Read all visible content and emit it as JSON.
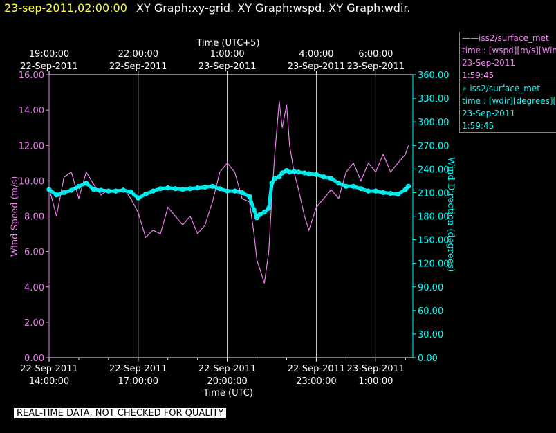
{
  "header": {
    "timestamp": "23-sep-2011,02:00:00",
    "graphs": "XY Graph:xy-grid.  XY Graph:wspd.  XY Graph:wdir."
  },
  "legend": [
    {
      "name": "——iss2/surface_met",
      "detail": "time : [wspd][m/s][Wind",
      "date": "23-Sep-2011",
      "time": "1:59:45",
      "color": "#ee82ee"
    },
    {
      "name": "∘ iss2/surface_met",
      "detail": "time : [wdir][degrees][W",
      "date": "23-Sep-2011",
      "time": "1:59:45",
      "color": "#00ffff"
    }
  ],
  "disclaimer": "REAL-TIME DATA, NOT CHECKED FOR QUALITY",
  "chart_data": {
    "type": "line",
    "grid": true,
    "colors": {
      "wspd": "#ee82ee",
      "wdir": "#00ffff",
      "grid": "#ffffff"
    },
    "x_bottom": {
      "label": "Time (UTC)",
      "ticks": [
        {
          "hour": 14,
          "date": "22-Sep-2011",
          "time": "14:00:00"
        },
        {
          "hour": 17,
          "date": "22-Sep-2011",
          "time": "17:00:00"
        },
        {
          "hour": 20,
          "date": "22-Sep-2011",
          "time": "20:00:00"
        },
        {
          "hour": 23,
          "date": "22-Sep-2011",
          "time": "23:00:00"
        },
        {
          "hour": 25,
          "date": "23-Sep-2011",
          "time": "1:00:00"
        }
      ]
    },
    "x_top": {
      "label": "Time (UTC+5)",
      "ticks": [
        {
          "hour": 14,
          "time": "19:00:00",
          "date": "22-Sep-2011"
        },
        {
          "hour": 17,
          "time": "22:00:00",
          "date": "22-Sep-2011"
        },
        {
          "hour": 20,
          "time": "1:00:00",
          "date": "23-Sep-2011"
        },
        {
          "hour": 23,
          "time": "4:00:00",
          "date": "23-Sep-2011"
        },
        {
          "hour": 25,
          "time": "6:00:00",
          "date": "23-Sep-2011"
        }
      ]
    },
    "xlim_hours": [
      14,
      26.25
    ],
    "y_left": {
      "label": "Wind Speed (m/s)",
      "ylim": [
        0,
        16
      ],
      "ticks": [
        "0.00",
        "2.00",
        "4.00",
        "6.00",
        "8.00",
        "10.00",
        "12.00",
        "14.00",
        "16.00"
      ]
    },
    "y_right": {
      "label": "Wind Direction (degrees)",
      "ylim": [
        0,
        360
      ],
      "ticks": [
        "0.00",
        "30.00",
        "60.00",
        "90.00",
        "120.00",
        "150.00",
        "180.00",
        "210.00",
        "240.00",
        "270.00",
        "300.00",
        "330.00",
        "360.00"
      ]
    },
    "series": [
      {
        "name": "iss2/surface_met wspd",
        "axis": "left",
        "hour": [
          14.0,
          14.25,
          14.5,
          14.75,
          15.0,
          15.25,
          15.5,
          15.75,
          16.0,
          16.25,
          16.5,
          16.75,
          17.0,
          17.25,
          17.5,
          17.75,
          18.0,
          18.25,
          18.5,
          18.75,
          19.0,
          19.25,
          19.5,
          19.75,
          20.0,
          20.25,
          20.5,
          20.75,
          20.9,
          21.0,
          21.1,
          21.25,
          21.4,
          21.5,
          21.6,
          21.75,
          21.85,
          22.0,
          22.1,
          22.25,
          22.4,
          22.6,
          22.75,
          23.0,
          23.25,
          23.5,
          23.75,
          24.0,
          24.25,
          24.5,
          24.75,
          25.0,
          25.25,
          25.5,
          25.75,
          26.0,
          26.1
        ],
        "values": [
          9.6,
          8.0,
          10.2,
          10.5,
          9.0,
          10.5,
          9.8,
          9.2,
          9.5,
          9.3,
          9.6,
          9.0,
          8.2,
          6.8,
          7.2,
          7.0,
          8.5,
          8.0,
          7.5,
          8.0,
          7.0,
          7.5,
          8.8,
          10.5,
          11.0,
          10.5,
          9.0,
          8.8,
          7.0,
          5.5,
          5.0,
          4.2,
          6.0,
          9.0,
          11.5,
          14.5,
          13.0,
          14.3,
          12.0,
          10.5,
          9.5,
          8.0,
          7.2,
          8.5,
          9.0,
          9.5,
          9.0,
          10.5,
          11.0,
          10.0,
          11.0,
          10.5,
          11.5,
          10.5,
          11.0,
          11.5,
          12.0
        ]
      },
      {
        "name": "iss2/surface_met wdir",
        "axis": "right",
        "hour": [
          14.0,
          14.25,
          14.5,
          14.75,
          15.0,
          15.25,
          15.5,
          15.75,
          16.0,
          16.25,
          16.5,
          16.75,
          17.0,
          17.25,
          17.5,
          17.75,
          18.0,
          18.25,
          18.5,
          18.75,
          19.0,
          19.25,
          19.5,
          19.75,
          20.0,
          20.25,
          20.5,
          20.75,
          20.9,
          21.0,
          21.1,
          21.25,
          21.4,
          21.5,
          21.6,
          21.75,
          21.85,
          22.0,
          22.1,
          22.25,
          22.4,
          22.6,
          22.75,
          23.0,
          23.25,
          23.5,
          23.75,
          24.0,
          24.25,
          24.5,
          24.75,
          25.0,
          25.25,
          25.5,
          25.75,
          26.0,
          26.1
        ],
        "values": [
          214,
          207,
          210,
          213,
          218,
          222,
          214,
          213,
          212,
          212,
          213,
          211,
          203,
          208,
          212,
          215,
          216,
          215,
          214,
          215,
          216,
          217,
          218,
          215,
          212,
          212,
          210,
          205,
          188,
          178,
          182,
          185,
          190,
          222,
          228,
          230,
          235,
          238,
          236,
          237,
          236,
          235,
          234,
          233,
          230,
          228,
          222,
          218,
          218,
          215,
          212,
          212,
          210,
          209,
          208,
          214,
          218
        ]
      }
    ]
  }
}
